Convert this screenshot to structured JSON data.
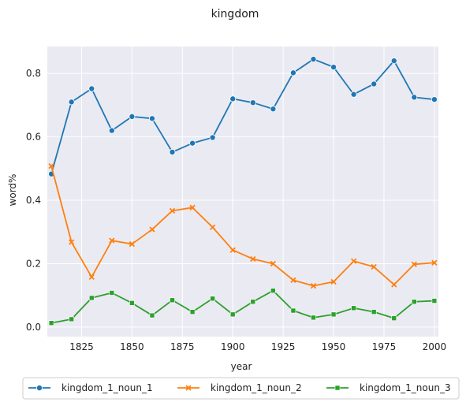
{
  "chart_data": {
    "type": "line",
    "title": "kingdom",
    "xlabel": "year",
    "ylabel": "word%",
    "xlim": [
      1808,
      2002
    ],
    "ylim": [
      -0.03,
      0.885
    ],
    "xticks": [
      1825,
      1850,
      1875,
      1900,
      1925,
      1950,
      1975,
      2000
    ],
    "yticks": [
      0.0,
      0.2,
      0.4,
      0.6,
      0.8
    ],
    "ytick_labels": [
      "0.0",
      "0.2",
      "0.4",
      "0.6",
      "0.8"
    ],
    "grid": true,
    "legend_position": "bottom-center",
    "x": [
      1810,
      1820,
      1830,
      1840,
      1850,
      1860,
      1870,
      1880,
      1890,
      1900,
      1910,
      1920,
      1930,
      1940,
      1950,
      1960,
      1970,
      1980,
      1990,
      2000
    ],
    "series": [
      {
        "name": "kingdom_1_noun_1",
        "color": "#1f77b4",
        "marker": "circle",
        "values": [
          0.483,
          0.71,
          0.752,
          0.62,
          0.664,
          0.658,
          0.552,
          0.58,
          0.598,
          0.72,
          0.708,
          0.688,
          0.802,
          0.845,
          0.82,
          0.734,
          0.767,
          0.84,
          0.725,
          0.718
        ]
      },
      {
        "name": "kingdom_1_noun_2",
        "color": "#ff7f0e",
        "marker": "x",
        "values": [
          0.508,
          0.268,
          0.158,
          0.273,
          0.262,
          0.308,
          0.367,
          0.377,
          0.315,
          0.243,
          0.215,
          0.2,
          0.148,
          0.13,
          0.143,
          0.208,
          0.19,
          0.134,
          0.198,
          0.203
        ]
      },
      {
        "name": "kingdom_1_noun_3",
        "color": "#2ca02c",
        "marker": "square",
        "values": [
          0.013,
          0.025,
          0.092,
          0.108,
          0.076,
          0.037,
          0.085,
          0.048,
          0.09,
          0.04,
          0.08,
          0.115,
          0.052,
          0.03,
          0.04,
          0.06,
          0.048,
          0.028,
          0.08,
          0.083
        ]
      }
    ]
  },
  "style": {
    "plot_background": "#eaeaf2",
    "grid_color": "#ffffff"
  }
}
